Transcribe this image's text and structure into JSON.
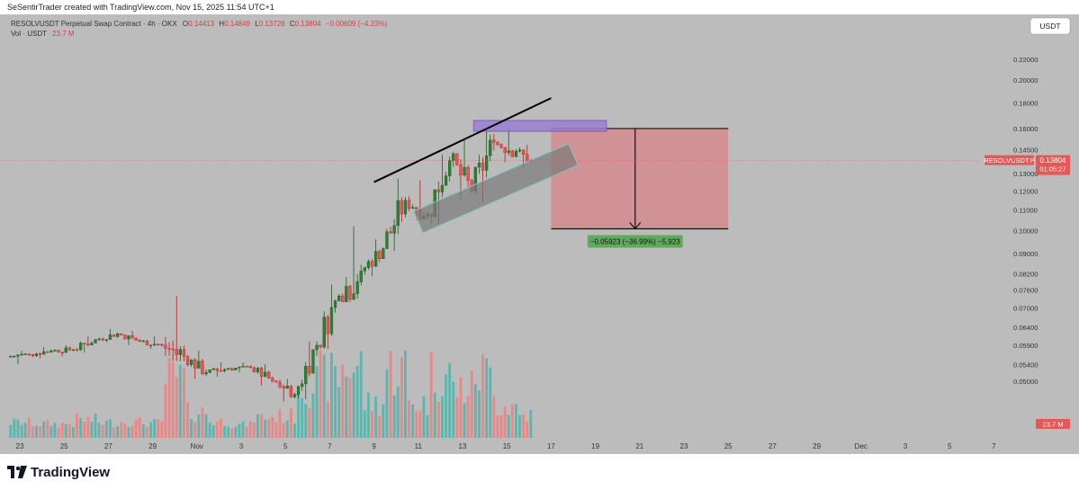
{
  "header": {
    "credit": "SeSentirTrader created with TradingView.com, Nov 15, 2025 11:54 UTC+1"
  },
  "legend": {
    "symbol": "RESOLVUSDT Perpetual Swap Contract · 4h · OKX",
    "o_label": "O",
    "o": "0.14413",
    "h_label": "H",
    "h": "0.14849",
    "l_label": "L",
    "l": "0.13728",
    "c_label": "C",
    "c": "0.13804",
    "change": "−0.00609 (−4.23%)",
    "vol_label": "Vol · USDT",
    "vol_value": "23.7 M"
  },
  "currency_button": "USDT",
  "price_badge": {
    "symbol": "RESOLVUSDT.P",
    "price": "0.13804",
    "countdown": "01:05:27"
  },
  "volume_badge": "23.7 M",
  "measure_label": "−0.05923 (−36.99%) −5,923",
  "footer": {
    "brand": "TradingView"
  },
  "colors": {
    "background": "#bcbcbc",
    "up": "#26a69a",
    "down": "#ef5350",
    "up_body": "#2e7d32",
    "vol_up": "#5fb5ad",
    "vol_down": "#e98886",
    "short_zone": "#d28d90",
    "resistance_box": "#9b7fd4",
    "channel": "#8a8a8a",
    "price_line": "#e05a5a",
    "measure_bg": "#5faa5f"
  },
  "chart_data": {
    "type": "candlestick",
    "timeframe": "4h",
    "y_axis": {
      "scale": "log",
      "ylim": [
        0.0445,
        0.245
      ],
      "tick_labels": [
        "0.22000",
        "0.20000",
        "0.18000",
        "0.16000",
        "0.14500",
        "0.13000",
        "0.12000",
        "0.11000",
        "0.10000",
        "0.09000",
        "0.08200",
        "0.07600",
        "0.07000",
        "0.06400",
        "0.05900",
        "0.05400",
        "0.05000"
      ]
    },
    "x_axis": {
      "tick_labels": [
        "23",
        "25",
        "27",
        "29",
        "Nov",
        "3",
        "5",
        "7",
        "9",
        "11",
        "13",
        "15",
        "17",
        "19",
        "21",
        "23",
        "25",
        "27",
        "29",
        "Dec",
        "3",
        "5",
        "7"
      ]
    },
    "daily_ohlc": [
      {
        "date": "Oct 23",
        "o": 0.056,
        "h": 0.0575,
        "l": 0.054,
        "c": 0.0565
      },
      {
        "date": "Oct 24",
        "o": 0.0565,
        "h": 0.0585,
        "l": 0.0555,
        "c": 0.0575
      },
      {
        "date": "Oct 25",
        "o": 0.0575,
        "h": 0.059,
        "l": 0.056,
        "c": 0.0578
      },
      {
        "date": "Oct 26",
        "o": 0.0578,
        "h": 0.0615,
        "l": 0.057,
        "c": 0.0605
      },
      {
        "date": "Oct 27",
        "o": 0.0605,
        "h": 0.0635,
        "l": 0.0598,
        "c": 0.0622
      },
      {
        "date": "Oct 28",
        "o": 0.0622,
        "h": 0.063,
        "l": 0.059,
        "c": 0.06
      },
      {
        "date": "Oct 29",
        "o": 0.06,
        "h": 0.0615,
        "l": 0.058,
        "c": 0.059
      },
      {
        "date": "Oct 30",
        "o": 0.059,
        "h": 0.074,
        "l": 0.0548,
        "c": 0.056
      },
      {
        "date": "Oct 31",
        "o": 0.056,
        "h": 0.0575,
        "l": 0.0505,
        "c": 0.052
      },
      {
        "date": "Nov 1",
        "o": 0.052,
        "h": 0.0545,
        "l": 0.051,
        "c": 0.053
      },
      {
        "date": "Nov 2",
        "o": 0.053,
        "h": 0.0545,
        "l": 0.052,
        "c": 0.0532
      },
      {
        "date": "Nov 3",
        "o": 0.0532,
        "h": 0.054,
        "l": 0.049,
        "c": 0.05
      },
      {
        "date": "Nov 4",
        "o": 0.05,
        "h": 0.0505,
        "l": 0.0455,
        "c": 0.047
      },
      {
        "date": "Nov 5",
        "o": 0.047,
        "h": 0.06,
        "l": 0.046,
        "c": 0.059
      },
      {
        "date": "Nov 6",
        "o": 0.059,
        "h": 0.078,
        "l": 0.058,
        "c": 0.074
      },
      {
        "date": "Nov 7",
        "o": 0.074,
        "h": 0.102,
        "l": 0.072,
        "c": 0.083
      },
      {
        "date": "Nov 8",
        "o": 0.083,
        "h": 0.096,
        "l": 0.081,
        "c": 0.092
      },
      {
        "date": "Nov 9",
        "o": 0.092,
        "h": 0.127,
        "l": 0.091,
        "c": 0.115
      },
      {
        "date": "Nov 10",
        "o": 0.115,
        "h": 0.126,
        "l": 0.105,
        "c": 0.108
      },
      {
        "date": "Nov 11",
        "o": 0.108,
        "h": 0.142,
        "l": 0.103,
        "c": 0.138
      },
      {
        "date": "Nov 12",
        "o": 0.138,
        "h": 0.152,
        "l": 0.115,
        "c": 0.12
      },
      {
        "date": "Nov 13",
        "o": 0.12,
        "h": 0.158,
        "l": 0.114,
        "c": 0.15
      },
      {
        "date": "Nov 14",
        "o": 0.15,
        "h": 0.161,
        "l": 0.137,
        "c": 0.1441
      },
      {
        "date": "Nov 15",
        "o": 0.1441,
        "h": 0.1485,
        "l": 0.133,
        "c": 0.138
      }
    ],
    "drawings": {
      "resistance_trendline": {
        "from": {
          "date": "Nov 8",
          "price": 0.125
        },
        "to": {
          "date": "Nov 16",
          "price": 0.184
        }
      },
      "rising_channel": {
        "from": {
          "date": "Nov 10",
          "price": 0.104
        },
        "to": {
          "date": "Nov 17",
          "price": 0.142
        }
      },
      "resistance_zone": {
        "from_date": "Nov 12.5",
        "to_date": "Nov 18.5",
        "low": 0.158,
        "high": 0.166
      },
      "short_target_zone": {
        "from_date": "Nov 16",
        "to_date": "Nov 24",
        "top": 0.16,
        "bottom": 0.1008
      },
      "measured_move": {
        "change": -0.05923,
        "percent": -36.99,
        "ticks": -5923
      }
    }
  }
}
